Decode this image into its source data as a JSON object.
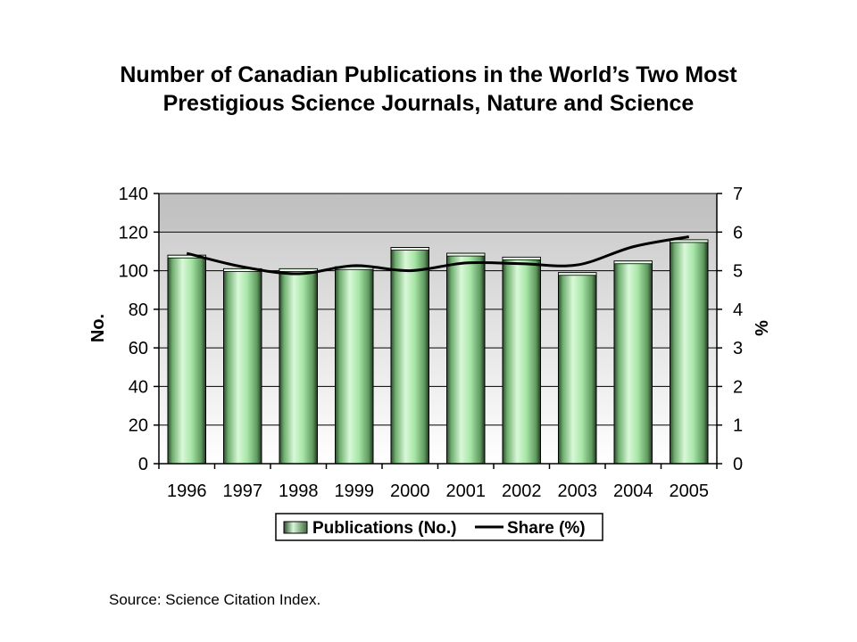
{
  "title_lines": [
    "Number of Canadian Publications in the World’s Two Most",
    "Prestigious Science Journals, Nature and Science"
  ],
  "source": "Source: Science Citation Index.",
  "chart_data": {
    "type": "bar",
    "categories": [
      "1996",
      "1997",
      "1998",
      "1999",
      "2000",
      "2001",
      "2002",
      "2003",
      "2004",
      "2005"
    ],
    "series": [
      {
        "name": "Publications (No.)",
        "type": "bar",
        "axis": "left",
        "values": [
          108,
          101,
          101,
          102,
          112,
          109,
          107,
          99,
          105,
          116
        ]
      },
      {
        "name": "Share (%)",
        "type": "line",
        "axis": "right",
        "values": [
          5.45,
          5.1,
          4.92,
          5.13,
          5.0,
          5.2,
          5.18,
          5.15,
          5.62,
          5.88
        ]
      }
    ],
    "ylabel": "No.",
    "y2label": "%",
    "ylim": [
      0,
      140
    ],
    "y2lim": [
      0,
      7
    ],
    "yticks": [
      "0",
      "20",
      "40",
      "60",
      "80",
      "100",
      "120",
      "140"
    ],
    "y2ticks": [
      "0",
      "1",
      "2",
      "3",
      "4",
      "5",
      "6",
      "7"
    ],
    "grid": "horizontal",
    "legend": "bottom",
    "colors": {
      "bar_light": "#d4f7d4",
      "bar_mid": "#9ce39c",
      "bar_dark": "#2e4a2e",
      "line": "#000000",
      "plot_bg_top": "#c0c0c0",
      "plot_bg_bottom": "#ffffff"
    }
  }
}
